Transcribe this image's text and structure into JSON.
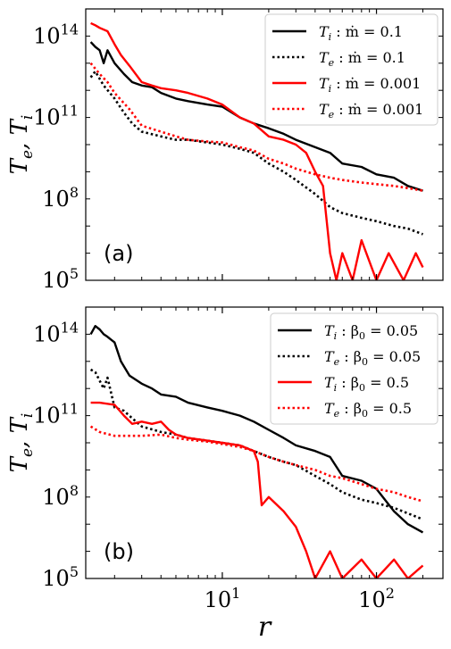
{
  "chart_data": [
    {
      "type": "line",
      "panel_label": "(a)",
      "x_scale": "log",
      "y_scale": "log",
      "xlim": [
        1.3,
        270
      ],
      "ylim": [
        100000,
        1000000000000000.0
      ],
      "ylabel": "T_e, T_i",
      "xlabel": "",
      "y_ticks": [
        {
          "value": 100000,
          "base": "10",
          "exp": "5"
        },
        {
          "value": 100000000,
          "base": "10",
          "exp": "8"
        },
        {
          "value": 100000000000,
          "base": "10",
          "exp": "11"
        },
        {
          "value": 100000000000000,
          "base": "10",
          "exp": "14"
        }
      ],
      "x_ticks": [],
      "legend_position": "top-right",
      "series": [
        {
          "name": "T_i :  ṁ = 0.1",
          "legend_main": "T",
          "legend_sub": "i",
          "legend_rest": " :  ṁ = 0.1",
          "color": "#000000",
          "dash": "solid",
          "x": [
            1.4,
            1.5,
            1.6,
            1.7,
            1.8,
            2.0,
            2.3,
            2.6,
            3.0,
            3.5,
            4.0,
            5.0,
            6.0,
            8.0,
            10,
            13,
            16,
            20,
            25,
            30,
            40,
            50,
            60,
            80,
            100,
            130,
            160,
            200
          ],
          "y": [
            60000000000000.0,
            40000000000000.0,
            30000000000000.0,
            10000000000000.0,
            30000000000000.0,
            10000000000000.0,
            4000000000000.0,
            2000000000000.0,
            1500000000000.0,
            1300000000000.0,
            800000000000.0,
            500000000000.0,
            400000000000.0,
            300000000000.0,
            250000000000.0,
            100000000000.0,
            60000000000.0,
            40000000000.0,
            25000000000.0,
            15000000000.0,
            8000000000.0,
            5000000000.0,
            2000000000.0,
            1500000000.0,
            800000000.0,
            600000000.0,
            300000000.0,
            200000000.0
          ]
        },
        {
          "name": "T_e :  ṁ = 0.1",
          "legend_main": "T",
          "legend_sub": "e",
          "legend_rest": " :  ṁ = 0.1",
          "color": "#000000",
          "dash": "dotted",
          "x": [
            1.4,
            1.5,
            1.7,
            2.0,
            2.3,
            2.6,
            3.0,
            4.0,
            5.0,
            6.0,
            8.0,
            10,
            13,
            16,
            20,
            25,
            30,
            40,
            50,
            60,
            80,
            100,
            130,
            160,
            200
          ],
          "y": [
            3000000000000.0,
            5000000000000.0,
            1500000000000.0,
            500000000000.0,
            150000000000.0,
            60000000000.0,
            30000000000.0,
            20000000000.0,
            15000000000.0,
            15000000000.0,
            12000000000.0,
            10000000000.0,
            7000000000.0,
            5000000000.0,
            2000000000.0,
            1000000000.0,
            500000000.0,
            150000000.0,
            50000000.0,
            30000000.0,
            20000000.0,
            15000000.0,
            10000000.0,
            8000000.0,
            5000000.0
          ]
        },
        {
          "name": "T_i :  ṁ = 0.001",
          "legend_main": "T",
          "legend_sub": "i",
          "legend_rest": " :  ṁ = 0.001",
          "color": "#ff0000",
          "dash": "solid",
          "x": [
            1.4,
            1.5,
            1.6,
            1.8,
            2.0,
            2.2,
            2.5,
            3.0,
            3.5,
            4.0,
            5.0,
            6.0,
            8.0,
            10,
            13,
            16,
            20,
            25,
            30,
            35,
            40,
            45,
            50,
            55,
            60,
            70,
            80,
            100,
            120,
            150,
            180,
            200
          ],
          "y": [
            300000000000000.0,
            250000000000000.0,
            200000000000000.0,
            150000000000000.0,
            50000000000000.0,
            20000000000000.0,
            8000000000000.0,
            2000000000000.0,
            1500000000000.0,
            1200000000000.0,
            1000000000000.0,
            800000000000.0,
            500000000000.0,
            300000000000.0,
            100000000000.0,
            60000000000.0,
            20000000000.0,
            15000000000.0,
            10000000000.0,
            5000000000.0,
            1000000000.0,
            300000000.0,
            1000000.0,
            100000.0,
            1000000.0,
            100000.0,
            3000000.0,
            100000.0,
            1000000.0,
            100000.0,
            1000000.0,
            300000.0
          ]
        },
        {
          "name": "T_e :  ṁ = 0.001",
          "legend_main": "T",
          "legend_sub": "e",
          "legend_rest": " :  ṁ = 0.001",
          "color": "#ff0000",
          "dash": "dotted",
          "x": [
            1.4,
            1.6,
            1.8,
            2.0,
            2.5,
            3.0,
            4.0,
            5.0,
            6.0,
            8.0,
            10,
            13,
            16,
            20,
            25,
            30,
            40,
            50,
            60,
            80,
            100,
            130,
            160,
            200
          ],
          "y": [
            10000000000000.0,
            4000000000000.0,
            2000000000000.0,
            800000000000.0,
            200000000000.0,
            50000000000.0,
            30000000000.0,
            20000000000.0,
            15000000000.0,
            13000000000.0,
            12000000000.0,
            8000000000.0,
            6000000000.0,
            3000000000.0,
            2000000000.0,
            1300000000.0,
            800000000.0,
            600000000.0,
            500000000.0,
            400000000.0,
            350000000.0,
            300000000.0,
            250000000.0,
            200000000.0
          ]
        }
      ]
    },
    {
      "type": "line",
      "panel_label": "(b)",
      "x_scale": "log",
      "y_scale": "log",
      "xlim": [
        1.3,
        270
      ],
      "ylim": [
        100000,
        1000000000000000.0
      ],
      "ylabel": "T_e, T_i",
      "xlabel": "r",
      "y_ticks": [
        {
          "value": 100000,
          "base": "10",
          "exp": "5"
        },
        {
          "value": 100000000,
          "base": "10",
          "exp": "8"
        },
        {
          "value": 100000000000,
          "base": "10",
          "exp": "11"
        },
        {
          "value": 100000000000000,
          "base": "10",
          "exp": "14"
        }
      ],
      "x_ticks": [
        {
          "value": 10,
          "base": "10",
          "exp": "1"
        },
        {
          "value": 100,
          "base": "10",
          "exp": "2"
        }
      ],
      "legend_position": "top-right",
      "series": [
        {
          "name": "T_i :  β0 = 0.05",
          "legend_main": "T",
          "legend_sub": "i",
          "legend_rest": " :  β",
          "legend_sub2": "0",
          "legend_tail": " = 0.05",
          "color": "#000000",
          "dash": "solid",
          "x": [
            1.4,
            1.5,
            1.6,
            1.7,
            1.8,
            2.0,
            2.2,
            2.5,
            3.0,
            3.5,
            4.0,
            5.0,
            6.0,
            8.0,
            10,
            13,
            16,
            20,
            25,
            30,
            40,
            50,
            60,
            80,
            100,
            130,
            160,
            200
          ],
          "y": [
            100000000000000.0,
            200000000000000.0,
            150000000000000.0,
            100000000000000.0,
            80000000000000.0,
            50000000000000.0,
            10000000000000.0,
            3000000000000.0,
            1500000000000.0,
            1000000000000.0,
            600000000000.0,
            500000000000.0,
            300000000000.0,
            200000000000.0,
            150000000000.0,
            100000000000.0,
            60000000000.0,
            30000000000.0,
            15000000000.0,
            8000000000.0,
            5000000000.0,
            3000000000.0,
            600000000.0,
            400000000.0,
            200000000.0,
            30000000.0,
            10000000.0,
            5000000.0
          ]
        },
        {
          "name": "T_e :  β0 = 0.05",
          "legend_main": "T",
          "legend_sub": "e",
          "legend_rest": " :  β",
          "legend_sub2": "0",
          "legend_tail": " = 0.05",
          "color": "#000000",
          "dash": "dotted",
          "x": [
            1.4,
            1.5,
            1.7,
            1.8,
            2.0,
            2.3,
            2.6,
            3.0,
            4.0,
            5.0,
            6.0,
            8.0,
            10,
            13,
            16,
            20,
            25,
            30,
            40,
            50,
            60,
            80,
            100,
            130,
            160,
            200
          ],
          "y": [
            5000000000000.0,
            4000000000000.0,
            1000000000000.0,
            2500000000000.0,
            200000000000.0,
            150000000000.0,
            80000000000.0,
            40000000000.0,
            25000000000.0,
            20000000000.0,
            15000000000.0,
            12000000000.0,
            10000000000.0,
            8000000000.0,
            5000000000.0,
            3000000000.0,
            2000000000.0,
            1500000000.0,
            600000000.0,
            300000000.0,
            150000000.0,
            80000000.0,
            60000000.0,
            40000000.0,
            25000000.0,
            15000000.0
          ]
        },
        {
          "name": "T_i :  β0 = 0.5",
          "legend_main": "T",
          "legend_sub": "i",
          "legend_rest": " :  β",
          "legend_sub2": "0",
          "legend_tail": " = 0.5",
          "color": "#ff0000",
          "dash": "solid",
          "x": [
            1.4,
            1.6,
            2.0,
            2.3,
            2.6,
            3.0,
            3.5,
            4.0,
            4.5,
            5.0,
            6.0,
            8.0,
            10,
            13,
            16,
            17,
            18,
            20,
            25,
            30,
            35,
            40,
            50,
            60,
            80,
            100,
            130,
            160,
            200
          ],
          "y": [
            300000000000.0,
            300000000000.0,
            250000000000.0,
            100000000000.0,
            50000000000.0,
            60000000000.0,
            50000000000.0,
            60000000000.0,
            30000000000.0,
            20000000000.0,
            15000000000.0,
            12000000000.0,
            10000000000.0,
            8000000000.0,
            5000000000.0,
            2000000000.0,
            50000000.0,
            100000000.0,
            30000000.0,
            8000000.0,
            1000000.0,
            100000.0,
            1000000.0,
            100000.0,
            500000.0,
            100000.0,
            500000.0,
            100000.0,
            300000.0
          ]
        },
        {
          "name": "T_e :  β0 = 0.5",
          "legend_main": "T",
          "legend_sub": "e",
          "legend_rest": " :  β",
          "legend_sub2": "0",
          "legend_tail": " = 0.5",
          "color": "#ff0000",
          "dash": "dotted",
          "x": [
            1.4,
            1.6,
            2.0,
            3.0,
            4.0,
            5.0,
            6.0,
            8.0,
            10,
            13,
            16,
            20,
            25,
            30,
            40,
            50,
            60,
            80,
            100,
            130,
            160,
            200
          ],
          "y": [
            40000000000.0,
            25000000000.0,
            18000000000.0,
            18000000000.0,
            20000000000.0,
            15000000000.0,
            13000000000.0,
            11000000000.0,
            9000000000.0,
            7000000000.0,
            5000000000.0,
            3000000000.0,
            2000000000.0,
            1500000000.0,
            1000000000.0,
            600000000.0,
            500000000.0,
            300000000.0,
            200000000.0,
            150000000.0,
            100000000.0,
            70000000.0
          ]
        }
      ]
    }
  ]
}
